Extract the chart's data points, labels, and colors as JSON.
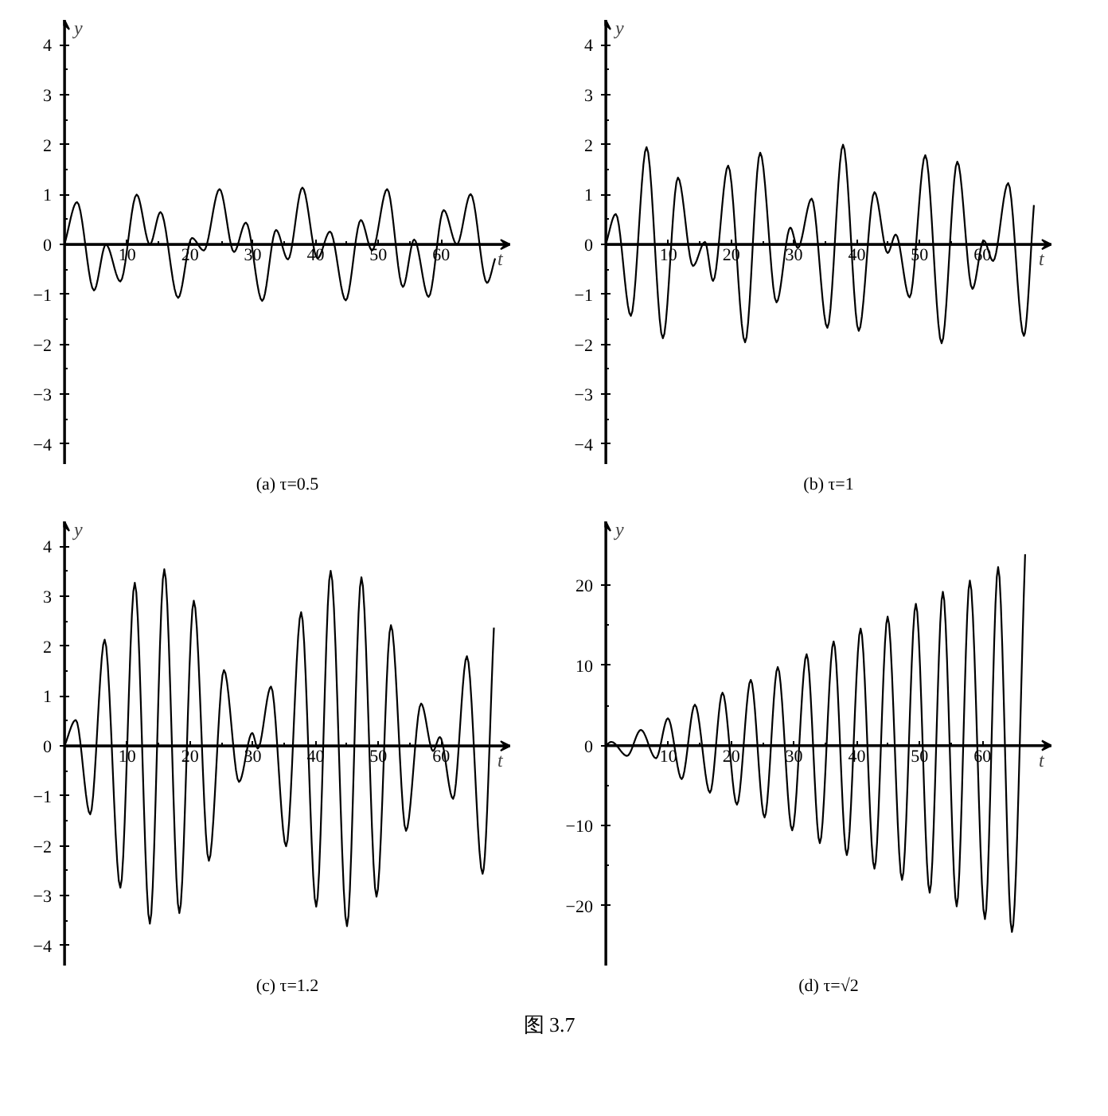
{
  "chart_data": [
    {
      "type": "line",
      "title": "(a) τ=0.5",
      "xlabel": "t",
      "ylabel": "y",
      "xlim": [
        0,
        71
      ],
      "ylim": [
        -4.4,
        4.5
      ],
      "xticks": [
        10,
        20,
        30,
        40,
        50,
        60
      ],
      "yticks": [
        -4,
        -3,
        -2,
        -1,
        0,
        1,
        2,
        3,
        4
      ],
      "x": [
        0,
        2.0,
        4.7,
        6.6,
        8.9,
        11.5,
        13.6,
        15.3,
        18.1,
        20.3,
        22.2,
        24.7,
        27.0,
        28.9,
        31.5,
        33.7,
        35.6,
        37.9,
        40.3,
        42.3,
        44.8,
        47.2,
        49.0,
        51.4,
        53.9,
        55.7,
        58.0,
        60.4,
        62.5,
        64.7,
        67.3,
        68.6
      ],
      "series": [
        {
          "color": "#000000",
          "values": [
            0,
            0.85,
            -0.92,
            0.0,
            -0.74,
            1.0,
            0.0,
            0.65,
            -1.07,
            0.13,
            -0.12,
            1.11,
            -0.15,
            0.44,
            -1.13,
            0.29,
            -0.3,
            1.14,
            -0.28,
            0.26,
            -1.12,
            0.49,
            -0.12,
            1.11,
            -0.85,
            0.1,
            -1.05,
            0.69,
            0.0,
            1.01,
            -0.77,
            -0.28
          ]
        }
      ]
    },
    {
      "type": "line",
      "title": "(b) τ=1",
      "xlabel": "t",
      "ylabel": "y",
      "xlim": [
        0,
        71
      ],
      "ylim": [
        -4.4,
        4.5
      ],
      "xticks": [
        10,
        20,
        30,
        40,
        50,
        60
      ],
      "yticks": [
        -4,
        -3,
        -2,
        -1,
        0,
        1,
        2,
        3,
        4
      ],
      "x": [
        0,
        1.6,
        4.0,
        6.5,
        9.1,
        11.5,
        13.9,
        15.8,
        17.1,
        19.5,
        22.2,
        24.6,
        27.2,
        29.4,
        30.6,
        32.8,
        35.3,
        37.8,
        40.3,
        42.8,
        44.9,
        46.2,
        48.4,
        50.9,
        53.5,
        56.0,
        58.4,
        60.2,
        61.7,
        64.1,
        66.6,
        68.2
      ],
      "series": [
        {
          "color": "#000000",
          "values": [
            0,
            0.61,
            -1.43,
            1.95,
            -1.88,
            1.34,
            -0.43,
            0.05,
            -0.73,
            1.58,
            -1.96,
            1.84,
            -1.16,
            0.34,
            -0.07,
            0.92,
            -1.67,
            2.0,
            -1.73,
            1.05,
            -0.17,
            0.2,
            -1.06,
            1.79,
            -1.98,
            1.66,
            -0.89,
            0.08,
            -0.33,
            1.23,
            -1.83,
            0.79
          ]
        }
      ]
    },
    {
      "type": "line",
      "title": "(c) τ=1.2",
      "xlabel": "t",
      "ylabel": "y",
      "xlim": [
        0,
        71
      ],
      "ylim": [
        -4.4,
        4.5
      ],
      "xticks": [
        10,
        20,
        30,
        40,
        50,
        60
      ],
      "yticks": [
        -4,
        -3,
        -2,
        -1,
        0,
        1,
        2,
        3,
        4
      ],
      "x": [
        0,
        1.8,
        4.1,
        6.4,
        8.9,
        11.2,
        13.6,
        15.9,
        18.3,
        20.6,
        23.0,
        25.4,
        27.8,
        29.9,
        30.8,
        32.9,
        35.3,
        37.7,
        40.1,
        42.4,
        45.0,
        47.3,
        49.7,
        52.0,
        54.4,
        56.8,
        58.7,
        59.8,
        61.9,
        64.1,
        66.6,
        68.4
      ],
      "series": [
        {
          "color": "#000000",
          "values": [
            0,
            0.52,
            -1.37,
            2.13,
            -2.84,
            3.27,
            -3.56,
            3.54,
            -3.35,
            2.91,
            -2.3,
            1.52,
            -0.72,
            0.26,
            -0.05,
            1.19,
            -2.01,
            2.68,
            -3.22,
            3.51,
            -3.61,
            3.38,
            -3.02,
            2.42,
            -1.7,
            0.85,
            -0.1,
            0.18,
            -1.06,
            1.8,
            -2.56,
            2.37
          ]
        }
      ]
    },
    {
      "type": "line",
      "title": "(d) τ=√2",
      "xlabel": "t",
      "ylabel": "y",
      "xlim": [
        0,
        71
      ],
      "ylim": [
        -27.5,
        28
      ],
      "xticks": [
        10,
        20,
        30,
        40,
        50,
        60
      ],
      "yticks": [
        -20,
        -10,
        0,
        10,
        20
      ],
      "x": [
        0,
        0.9,
        3.4,
        5.6,
        8.0,
        9.9,
        12.1,
        14.2,
        16.6,
        18.6,
        20.9,
        23.1,
        25.3,
        27.4,
        29.7,
        32.0,
        34.1,
        36.3,
        38.4,
        40.6,
        42.8,
        44.9,
        47.2,
        49.4,
        51.6,
        53.7,
        55.9,
        58.0,
        60.4,
        62.5,
        64.7,
        66.8
      ],
      "series": [
        {
          "color": "#000000",
          "values": [
            0,
            0.45,
            -1.3,
            1.95,
            -1.6,
            3.4,
            -4.2,
            5.1,
            -5.9,
            6.6,
            -7.4,
            8.2,
            -9.0,
            9.8,
            -10.6,
            11.4,
            -12.2,
            13.0,
            -13.7,
            14.6,
            -15.4,
            16.1,
            -16.8,
            17.7,
            -18.4,
            19.2,
            -20.1,
            20.6,
            -21.7,
            22.3,
            -23.3,
            23.9
          ]
        }
      ],
      "annotations": [
        "图 3.7"
      ]
    }
  ]
}
